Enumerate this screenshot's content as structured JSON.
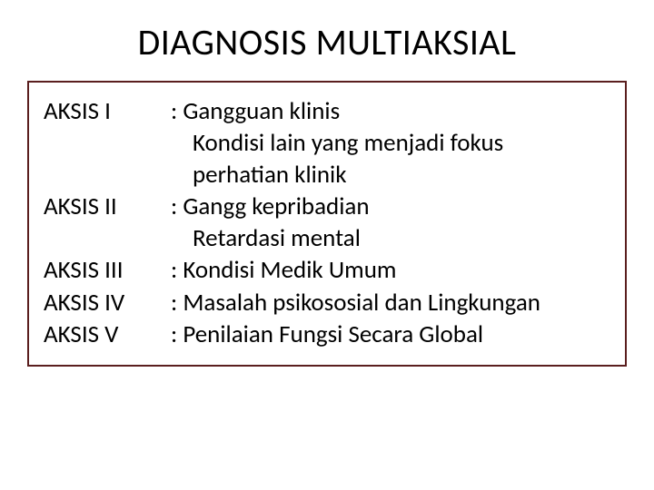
{
  "title": "DIAGNOSIS MULTIAKSIAL",
  "box": {
    "border_color": "#5a1e1e",
    "background": "#ffffff"
  },
  "axes": [
    {
      "label": "AKSIS I",
      "main": ": Gangguan klinis",
      "sub1": "Kondisi lain yang menjadi fokus",
      "sub2": "perhatian klinik"
    },
    {
      "label": "AKSIS II",
      "main": ": Gangg kepribadian",
      "sub1": "Retardasi mental",
      "sub2": ""
    },
    {
      "label": "AKSIS III",
      "main": ": Kondisi Medik Umum",
      "sub1": "",
      "sub2": ""
    },
    {
      "label": "AKSIS IV",
      "main": ": Masalah psikososial dan Lingkungan",
      "sub1": "",
      "sub2": ""
    },
    {
      "label": "AKSIS  V",
      "main": ": Penilaian Fungsi Secara Global",
      "sub1": "",
      "sub2": ""
    }
  ]
}
